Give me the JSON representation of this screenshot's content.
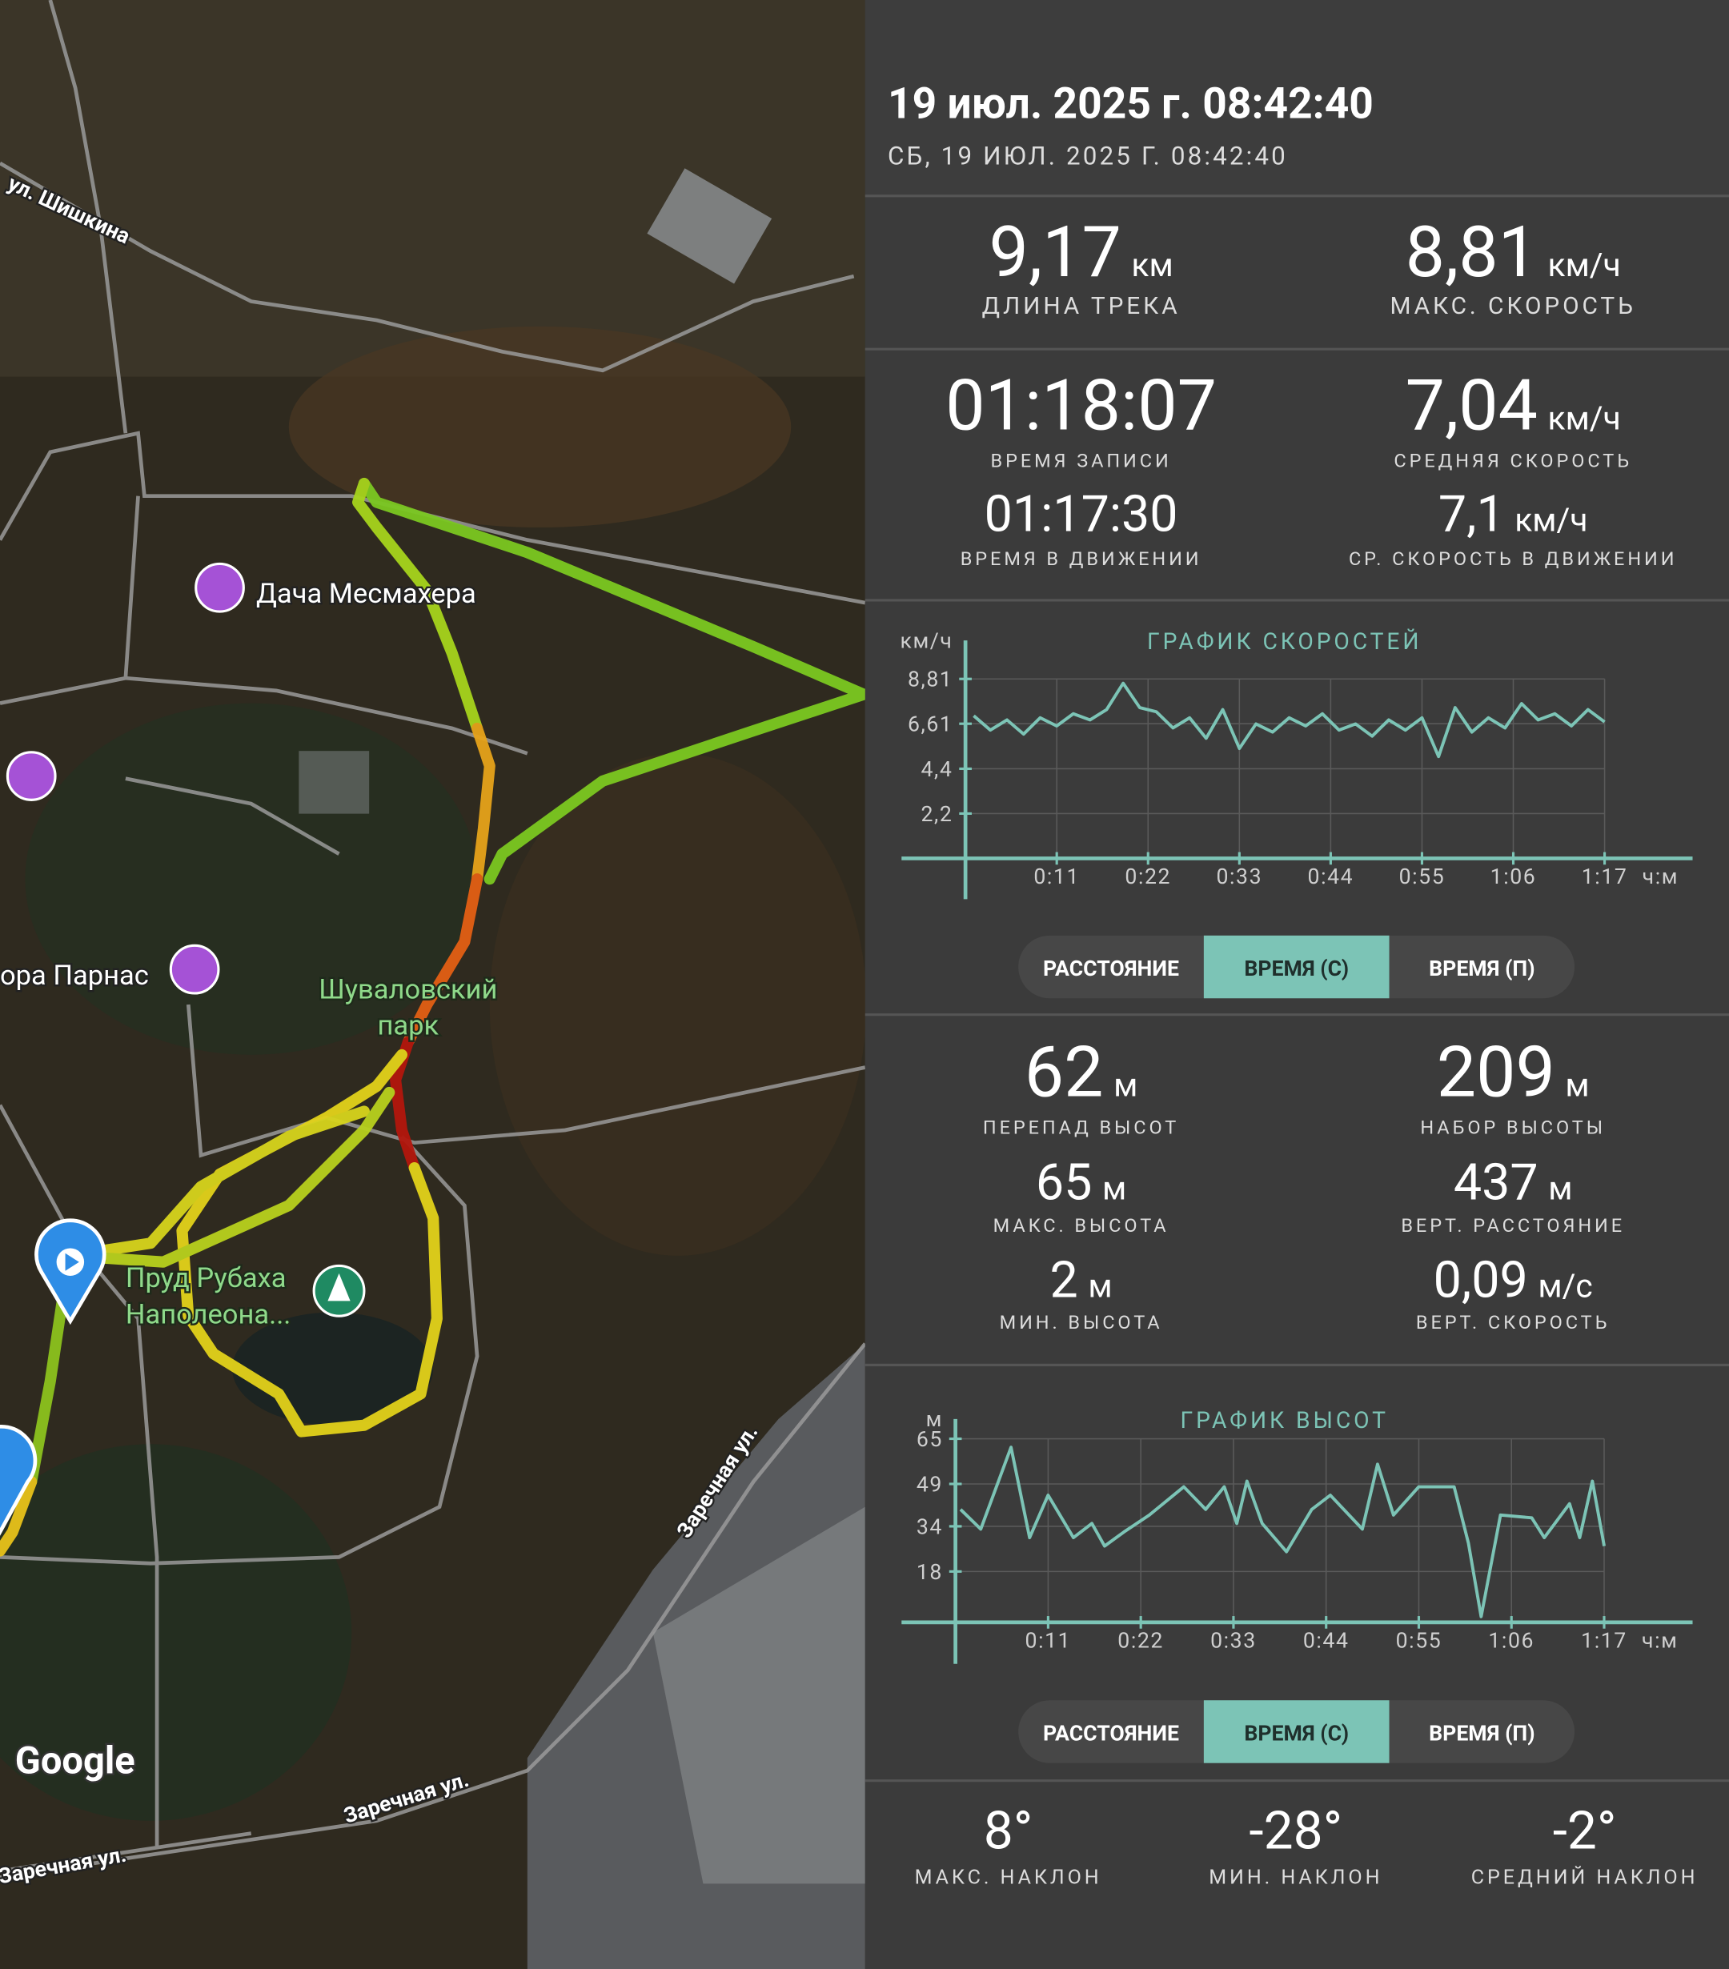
{
  "map": {
    "labels": [
      {
        "lines": [
          "ул. Шишкина"
        ]
      },
      {
        "lines": [
          "Дача Месмахера"
        ]
      },
      {
        "lines": [
          "ора Парнас"
        ]
      },
      {
        "lines": [
          "Шуваловский",
          "парк"
        ]
      },
      {
        "lines": [
          "Пруд Рубаха",
          "Наполеона..."
        ]
      },
      {
        "lines": [
          "Заречная ул."
        ]
      },
      {
        "lines": [
          "Заречная ул."
        ]
      },
      {
        "lines": [
          "Заречная ул."
        ]
      }
    ],
    "attribution": "Google"
  },
  "header": {
    "title": "19 июл. 2025 г. 08:42:40",
    "subtitle": "СБ, 19 ИЮЛ. 2025 Г. 08:42:40"
  },
  "stats": [
    {
      "value": "9,17",
      "unit": "км",
      "label": "ДЛИНА ТРЕКА"
    },
    {
      "value": "8,81",
      "unit": "км/ч",
      "label": "МАКС. СКОРОСТЬ"
    },
    {
      "value": "01:18:07",
      "label": "ВРЕМЯ ЗАПИСИ"
    },
    {
      "value": "7,04",
      "unit": "км/ч",
      "label": "СРЕДНЯЯ СКОРОСТЬ"
    },
    {
      "value": "01:17:30",
      "label": "ВРЕМЯ В ДВИЖЕНИИ"
    },
    {
      "value": "7,1",
      "unit": "км/ч",
      "label": "СР. СКОРОСТЬ В ДВИЖЕНИИ"
    },
    {
      "value": "62",
      "unit": "м",
      "label": "ПЕРЕПАД ВЫСОТ"
    },
    {
      "value": "209",
      "unit": "м",
      "label": "НАБОР ВЫСОТЫ"
    },
    {
      "value": "65",
      "unit": "м",
      "label": "МАКС. ВЫСОТА"
    },
    {
      "value": "437",
      "unit": "м",
      "label": "ВЕРТ. РАССТОЯНИЕ"
    },
    {
      "value": "2",
      "unit": "м",
      "label": "МИН. ВЫСОТА"
    },
    {
      "value": "0,09",
      "unit": "м/с",
      "label": "ВЕРТ. СКОРОСТЬ"
    },
    {
      "value": "8°",
      "label": "МАКС. НАКЛОН"
    },
    {
      "value": "-28°",
      "label": "МИН. НАКЛОН"
    },
    {
      "value": "-2°",
      "label": "СРЕДНИЙ НАКЛОН"
    }
  ],
  "toggles": [
    {
      "options": [
        "РАССТОЯНИЕ",
        "ВРЕМЯ (С)",
        "ВРЕМЯ (П)"
      ],
      "selected": 1
    },
    {
      "options": [
        "РАССТОЯНИЕ",
        "ВРЕМЯ (С)",
        "ВРЕМЯ (П)"
      ],
      "selected": 1
    }
  ],
  "chart_data": [
    {
      "type": "line",
      "title": "ГРАФИК СКОРОСТЕЙ",
      "y_unit": "км/ч",
      "x_unit": "ч:м",
      "color": "#7cc4b6",
      "grid": true,
      "x": [
        1,
        3,
        5,
        7,
        9,
        11,
        13,
        15,
        17,
        19,
        21,
        23,
        25,
        27,
        29,
        31,
        33,
        35,
        37,
        39,
        41,
        43,
        45,
        47,
        49,
        51,
        53,
        55,
        57,
        59,
        61,
        63,
        65,
        67,
        69,
        71,
        73,
        75,
        77
      ],
      "values": [
        7.0,
        6.3,
        6.8,
        6.1,
        6.9,
        6.5,
        7.1,
        6.8,
        7.3,
        8.6,
        7.4,
        7.2,
        6.4,
        6.9,
        5.9,
        7.3,
        5.4,
        6.6,
        6.2,
        6.9,
        6.5,
        7.1,
        6.3,
        6.6,
        6.0,
        6.8,
        6.3,
        6.9,
        5.0,
        7.4,
        6.2,
        6.9,
        6.4,
        7.6,
        6.8,
        7.1,
        6.5,
        7.3,
        6.7
      ],
      "xlim": [
        -7.7,
        87.6
      ],
      "ylim": [
        -2,
        10.7
      ],
      "xticks": [
        {
          "value": 11,
          "label": "0:11"
        },
        {
          "value": 22,
          "label": "0:22"
        },
        {
          "value": 33,
          "label": "0:33"
        },
        {
          "value": 44,
          "label": "0:44"
        },
        {
          "value": 55,
          "label": "0:55"
        },
        {
          "value": 66,
          "label": "1:06"
        },
        {
          "value": 77,
          "label": "1:17"
        }
      ],
      "yticks": [
        {
          "value": 2.2,
          "label": "2,2"
        },
        {
          "value": 4.4,
          "label": "4,4"
        },
        {
          "value": 6.61,
          "label": "6,61"
        },
        {
          "value": 8.81,
          "label": "8,81"
        }
      ]
    },
    {
      "type": "line",
      "title": "ГРАФИК ВЫСОТ",
      "y_unit": "м",
      "x_unit": "ч:м",
      "color": "#7cc4b6",
      "grid": true,
      "x": [
        0.6,
        3,
        6.6,
        8.8,
        11,
        14,
        16.2,
        17.7,
        20,
        23,
        27.1,
        29.7,
        31.9,
        33.4,
        34.6,
        36.4,
        39.3,
        42.3,
        44.5,
        48.3,
        50.1,
        52,
        55,
        59.2,
        60.9,
        62.4,
        64.7,
        68.4,
        69.9,
        72.9,
        74.1,
        75.6,
        77
      ],
      "values": [
        40,
        33,
        62,
        30,
        45,
        30,
        35,
        27,
        32,
        38,
        48,
        40,
        48,
        35,
        50,
        35,
        25,
        40,
        45,
        33,
        56,
        38,
        48,
        48,
        28,
        2,
        38,
        37,
        30,
        42,
        30,
        50,
        27
      ],
      "xlim": [
        -6.4,
        87.5
      ],
      "ylim": [
        -14.7,
        72
      ],
      "xticks": [
        {
          "value": 11,
          "label": "0:11"
        },
        {
          "value": 22,
          "label": "0:22"
        },
        {
          "value": 33,
          "label": "0:33"
        },
        {
          "value": 44,
          "label": "0:44"
        },
        {
          "value": 55,
          "label": "0:55"
        },
        {
          "value": 66,
          "label": "1:06"
        },
        {
          "value": 77,
          "label": "1:17"
        }
      ],
      "yticks": [
        18,
        34,
        49,
        65
      ]
    }
  ]
}
